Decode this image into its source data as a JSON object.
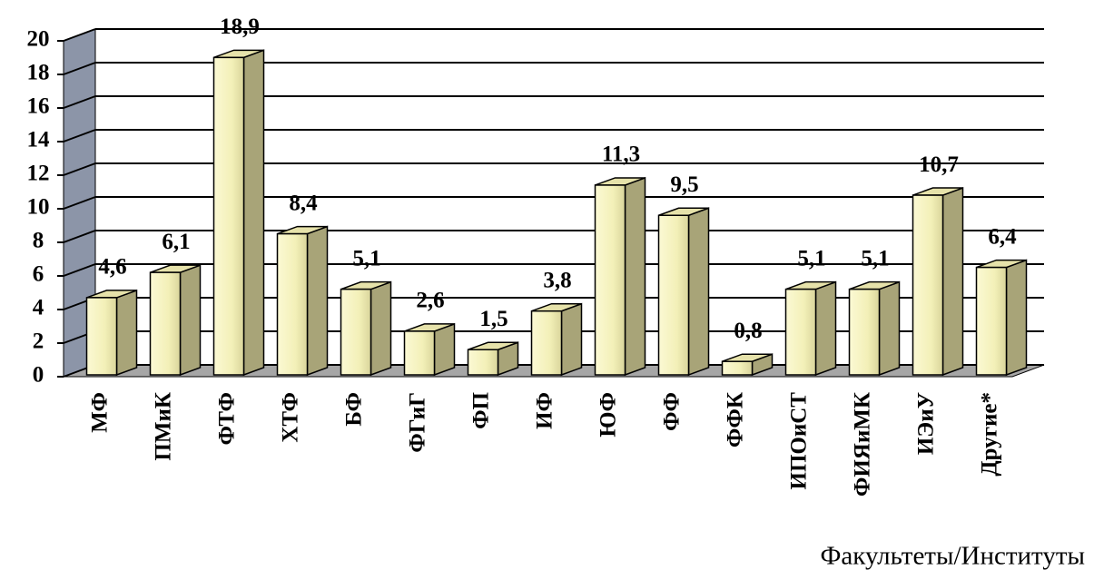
{
  "chart_data": {
    "type": "bar3d",
    "x_label": "Факультеты/Институты",
    "categories": [
      "МФ",
      "ПМиК",
      "ФТФ",
      "ХТФ",
      "БФ",
      "ФГиГ",
      "ФП",
      "ИФ",
      "ЮФ",
      "ФФ",
      "ФФК",
      "ИПОиСТ",
      "ФИЯиМК",
      "ИЭиУ",
      "Другие*"
    ],
    "values": [
      4.6,
      6.1,
      18.9,
      8.4,
      5.1,
      2.6,
      1.5,
      3.8,
      11.3,
      9.5,
      0.8,
      5.1,
      5.1,
      10.7,
      6.4
    ],
    "value_labels": [
      "4,6",
      "6,1",
      "18,9",
      "8,4",
      "5,1",
      "2,6",
      "1,5",
      "3,8",
      "11,3",
      "9,5",
      "0,8",
      "5,1",
      "5,1",
      "10,7",
      "6,4"
    ],
    "color": "#f3f0b8",
    "ylim": [
      0,
      20
    ],
    "yticks": [
      0,
      2,
      4,
      6,
      8,
      10,
      12,
      14,
      16,
      18,
      20
    ],
    "grid": true
  }
}
